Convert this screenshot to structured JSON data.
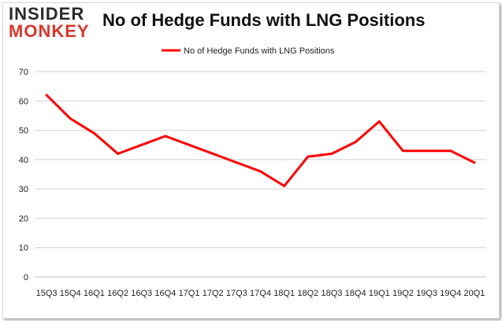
{
  "brand": {
    "logo_top": "INSIDER",
    "logo_bottom": "MONKEY",
    "brand_color": "#d9362b"
  },
  "chart_data": {
    "type": "line",
    "title": "No of Hedge Funds with LNG Positions",
    "xlabel": "",
    "ylabel": "",
    "categories": [
      "15Q3",
      "15Q4",
      "16Q1",
      "16Q2",
      "16Q3",
      "16Q4",
      "17Q1",
      "17Q2",
      "17Q3",
      "17Q4",
      "18Q1",
      "18Q2",
      "18Q3",
      "18Q4",
      "19Q1",
      "19Q2",
      "19Q3",
      "19Q4",
      "20Q1"
    ],
    "series": [
      {
        "name": "No of Hedge Funds with LNG Positions",
        "color": "#ff0000",
        "values": [
          62,
          54,
          49,
          42,
          45,
          48,
          45,
          42,
          39,
          36,
          31,
          41,
          42,
          46,
          53,
          43,
          43,
          43,
          39
        ]
      }
    ],
    "ylim": [
      0,
      70
    ],
    "yticks": [
      0,
      10,
      20,
      30,
      40,
      50,
      60,
      70
    ],
    "grid": true,
    "legend": "top-center"
  }
}
